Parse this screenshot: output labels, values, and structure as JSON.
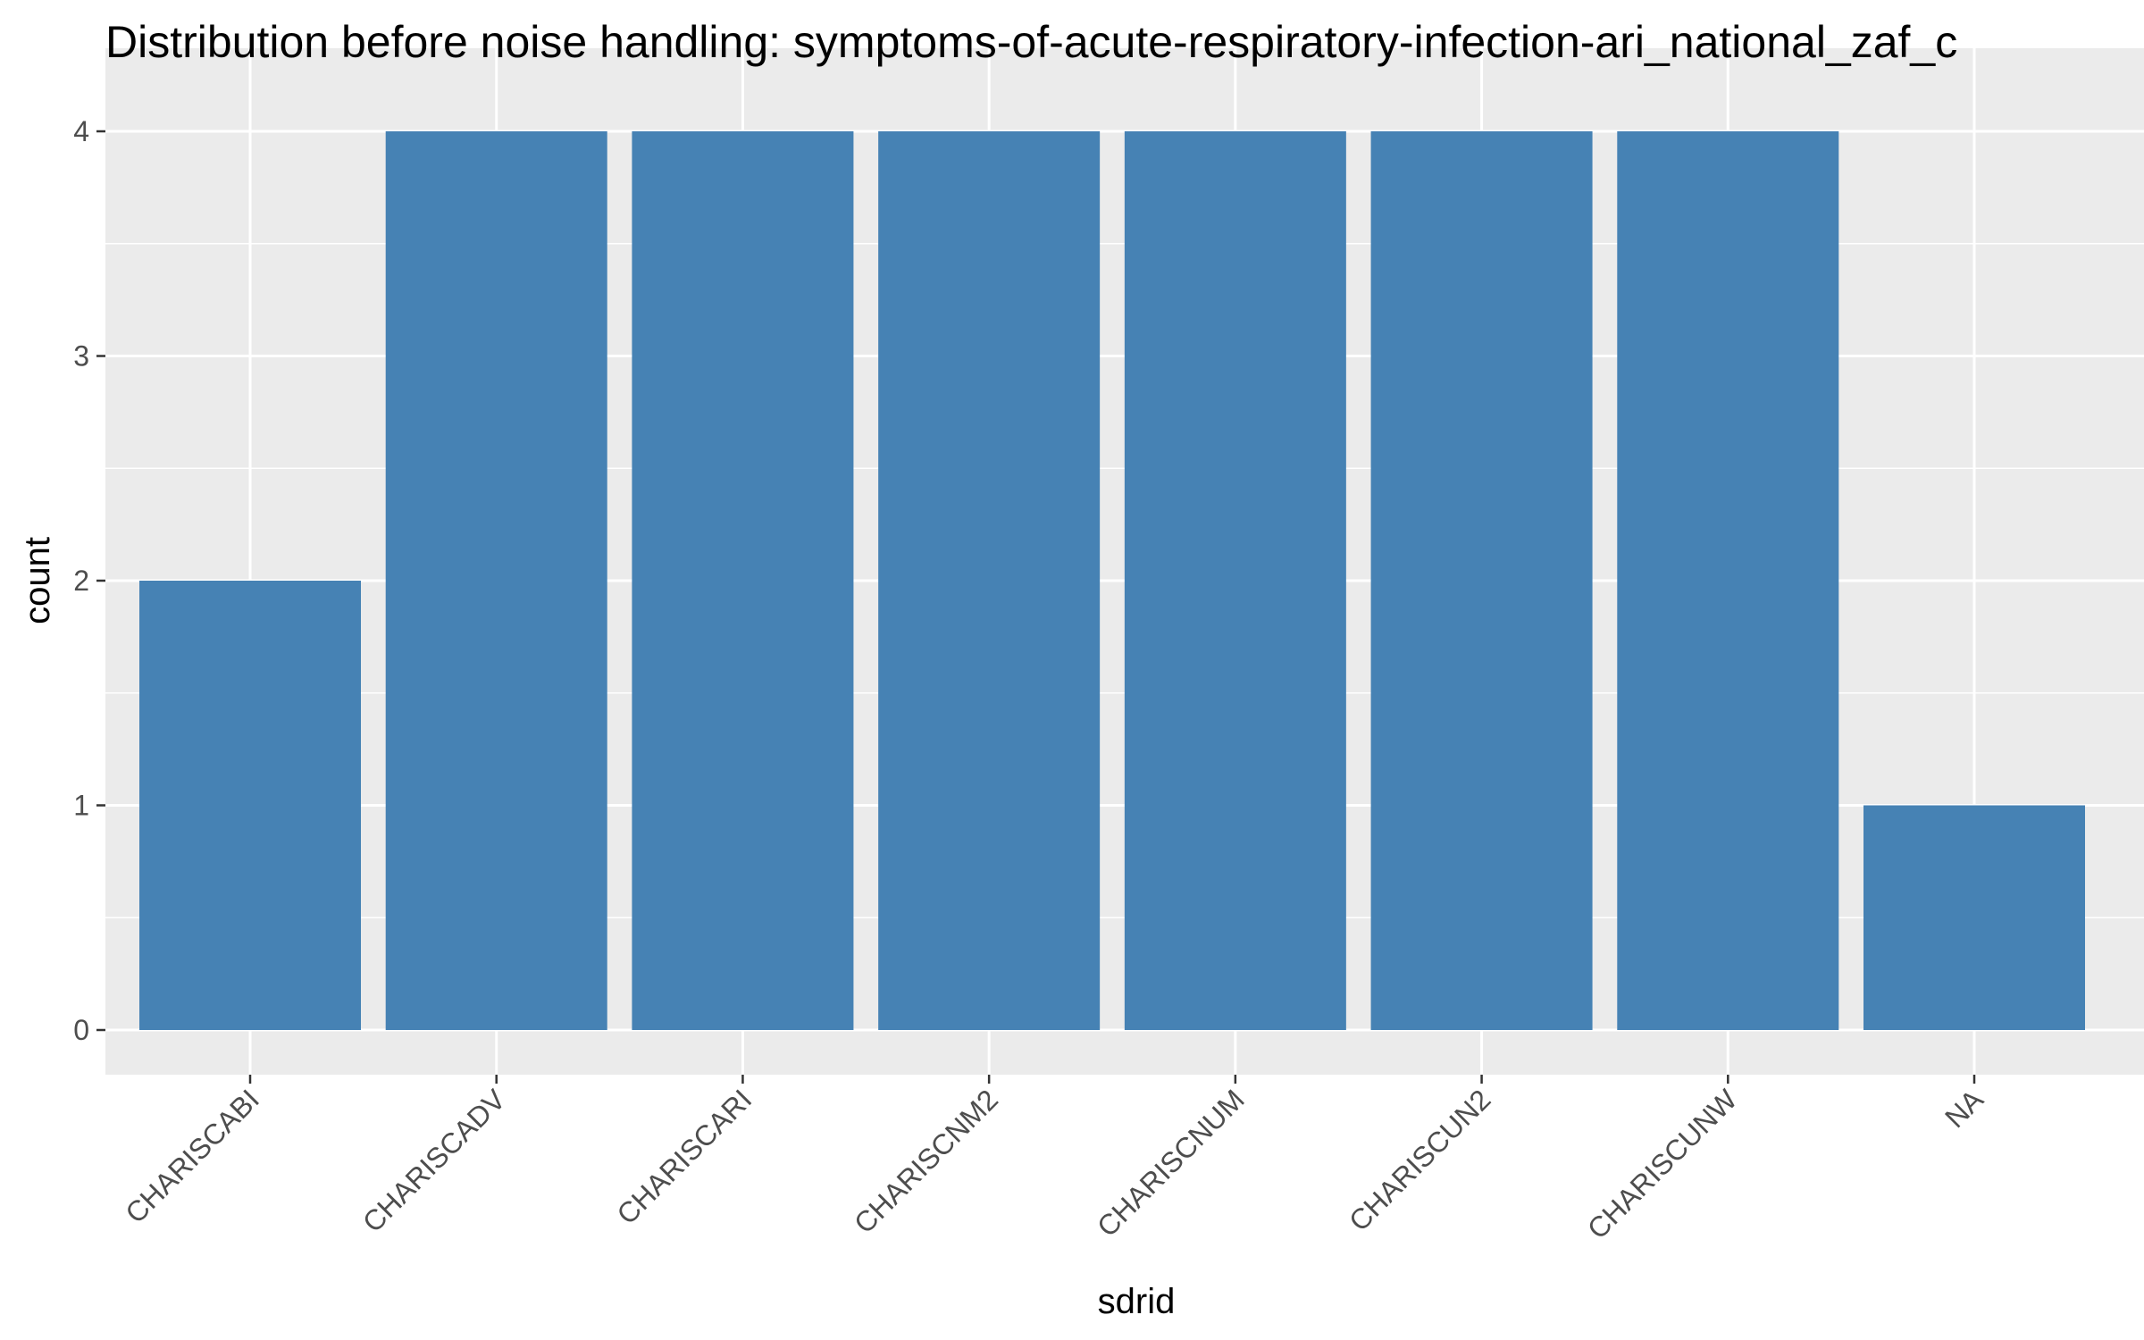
{
  "chart_data": {
    "type": "bar",
    "title": "Distribution before noise handling: symptoms-of-acute-respiratory-infection-ari_national_zaf_c",
    "xlabel": "sdrid",
    "ylabel": "count",
    "categories": [
      "CHARISCABI",
      "CHARISCADV",
      "CHARISCARI",
      "CHARISCNM2",
      "CHARISCNUM",
      "CHARISCUN2",
      "CHARISCUNW",
      "NA"
    ],
    "values": [
      2,
      4,
      4,
      4,
      4,
      4,
      4,
      1
    ],
    "ylim": [
      0,
      4.2
    ],
    "yticks": [
      "0",
      "1",
      "2",
      "3",
      "4"
    ],
    "grid": true,
    "colors": {
      "bar": "#4682b4",
      "panel": "#ebebeb",
      "grid": "#ffffff"
    }
  }
}
